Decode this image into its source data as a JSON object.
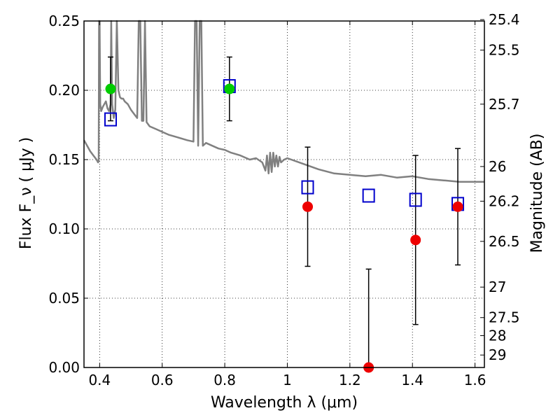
{
  "chart_data": {
    "type": "scatter",
    "xlabel": "Wavelength λ (μm)",
    "ylabel": "Flux F_ν ( μJy )",
    "y2label": "Magnitude (AB)",
    "xlim": [
      0.35,
      1.63
    ],
    "ylim": [
      0.0,
      0.25
    ],
    "grid": true,
    "x_ticks": [
      0.4,
      0.6,
      0.8,
      1.0,
      1.2,
      1.4,
      1.6
    ],
    "x_tick_labels": [
      "0.4",
      "0.6",
      "0.8",
      "1",
      "1.2",
      "1.4",
      "1.6"
    ],
    "y_ticks": [
      0.0,
      0.05,
      0.1,
      0.15,
      0.2,
      0.25
    ],
    "y_tick_labels": [
      "0.00",
      "0.05",
      "0.10",
      "0.15",
      "0.20",
      "0.25"
    ],
    "y2_ticks": [
      {
        "label": "25.4",
        "flux": 0.251
      },
      {
        "label": "25.5",
        "flux": 0.229
      },
      {
        "label": "25.7",
        "flux": 0.19
      },
      {
        "label": "26",
        "flux": 0.145
      },
      {
        "label": "26.2",
        "flux": 0.12
      },
      {
        "label": "26.5",
        "flux": 0.091
      },
      {
        "label": "27",
        "flux": 0.058
      },
      {
        "label": "27.5",
        "flux": 0.036
      },
      {
        "label": "28",
        "flux": 0.023
      },
      {
        "label": "29",
        "flux": 0.009
      }
    ],
    "colors": {
      "model": "#808080",
      "model_points": "#0000cc",
      "green_points": "#00cc00",
      "red_points": "#ee0000",
      "errorbars": "#000000"
    },
    "model_spectrum": {
      "x": [
        0.35,
        0.36,
        0.37,
        0.38,
        0.39,
        0.395,
        0.397,
        0.398,
        0.4,
        0.402,
        0.405,
        0.41,
        0.415,
        0.42,
        0.425,
        0.43,
        0.435,
        0.437,
        0.44,
        0.445,
        0.45,
        0.455,
        0.46,
        0.465,
        0.47,
        0.475,
        0.48,
        0.49,
        0.5,
        0.51,
        0.52,
        0.525,
        0.528,
        0.53,
        0.535,
        0.54,
        0.545,
        0.55,
        0.56,
        0.58,
        0.6,
        0.62,
        0.65,
        0.68,
        0.7,
        0.705,
        0.71,
        0.715,
        0.72,
        0.725,
        0.73,
        0.74,
        0.76,
        0.78,
        0.8,
        0.82,
        0.85,
        0.88,
        0.9,
        0.92,
        0.93,
        0.935,
        0.94,
        0.945,
        0.95,
        0.955,
        0.96,
        0.965,
        0.97,
        0.975,
        0.98,
        0.99,
        1.0,
        1.05,
        1.1,
        1.15,
        1.2,
        1.25,
        1.3,
        1.35,
        1.4,
        1.45,
        1.5,
        1.55,
        1.6,
        1.63
      ],
      "y": [
        0.164,
        0.16,
        0.156,
        0.153,
        0.15,
        0.148,
        0.149,
        0.25,
        0.25,
        0.19,
        0.185,
        0.188,
        0.19,
        0.192,
        0.187,
        0.185,
        0.19,
        0.25,
        0.19,
        0.18,
        0.186,
        0.25,
        0.2,
        0.195,
        0.194,
        0.194,
        0.192,
        0.19,
        0.186,
        0.183,
        0.18,
        0.25,
        0.25,
        0.25,
        0.178,
        0.178,
        0.25,
        0.177,
        0.174,
        0.172,
        0.17,
        0.168,
        0.166,
        0.164,
        0.163,
        0.25,
        0.25,
        0.16,
        0.25,
        0.25,
        0.16,
        0.162,
        0.16,
        0.158,
        0.157,
        0.155,
        0.153,
        0.15,
        0.151,
        0.148,
        0.142,
        0.153,
        0.14,
        0.155,
        0.141,
        0.155,
        0.145,
        0.153,
        0.145,
        0.152,
        0.148,
        0.15,
        0.151,
        0.147,
        0.143,
        0.14,
        0.139,
        0.138,
        0.139,
        0.137,
        0.138,
        0.136,
        0.135,
        0.134,
        0.134,
        0.134
      ]
    },
    "model_points": {
      "x": [
        0.435,
        0.815,
        1.065,
        1.26,
        1.41,
        1.545
      ],
      "y": [
        0.179,
        0.203,
        0.13,
        0.124,
        0.121,
        0.118
      ]
    },
    "green_points": {
      "x": [
        0.435,
        0.815
      ],
      "y": [
        0.201,
        0.201
      ],
      "yerr": [
        0.023,
        0.023
      ]
    },
    "red_points": {
      "x": [
        1.065,
        1.26,
        1.41,
        1.545
      ],
      "y": [
        0.116,
        0.0,
        0.092,
        0.116
      ],
      "yerr": [
        0.043,
        0.071,
        0.061,
        0.042
      ]
    }
  }
}
